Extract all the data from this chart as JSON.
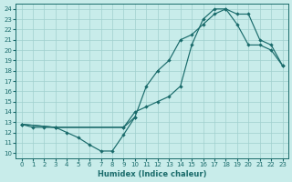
{
  "xlabel": "Humidex (Indice chaleur)",
  "bg_color": "#c8ecea",
  "line_color": "#1a6b6b",
  "grid_color": "#a0d0ce",
  "xlim": [
    -0.5,
    23.5
  ],
  "ylim": [
    9.5,
    24.5
  ],
  "xticks": [
    0,
    1,
    2,
    3,
    4,
    5,
    6,
    7,
    8,
    9,
    10,
    11,
    12,
    13,
    14,
    15,
    16,
    17,
    18,
    19,
    20,
    21,
    22,
    23
  ],
  "yticks": [
    10,
    11,
    12,
    13,
    14,
    15,
    16,
    17,
    18,
    19,
    20,
    21,
    22,
    23,
    24
  ],
  "line1_x": [
    0,
    1,
    2,
    3,
    4,
    5,
    6,
    7,
    8,
    9,
    10
  ],
  "line1_y": [
    12.8,
    12.5,
    12.5,
    12.5,
    12.0,
    11.5,
    10.8,
    10.2,
    10.2,
    11.8,
    13.5
  ],
  "line2_x": [
    0,
    3,
    9,
    10,
    11,
    12,
    13,
    14,
    15,
    16,
    17,
    18,
    19,
    20,
    21,
    22,
    23
  ],
  "line2_y": [
    12.8,
    12.5,
    12.5,
    13.5,
    16.5,
    18.0,
    19.0,
    21.0,
    21.5,
    22.5,
    23.5,
    24.0,
    23.5,
    23.5,
    21.0,
    20.5,
    18.5
  ],
  "line3_x": [
    0,
    3,
    9,
    10,
    11,
    12,
    13,
    14,
    15,
    16,
    17,
    18,
    19,
    20,
    21,
    22,
    23
  ],
  "line3_y": [
    12.8,
    12.5,
    12.5,
    14.0,
    14.5,
    15.0,
    15.5,
    16.5,
    20.5,
    23.0,
    24.0,
    24.0,
    22.5,
    20.5,
    20.5,
    20.0,
    18.5
  ]
}
